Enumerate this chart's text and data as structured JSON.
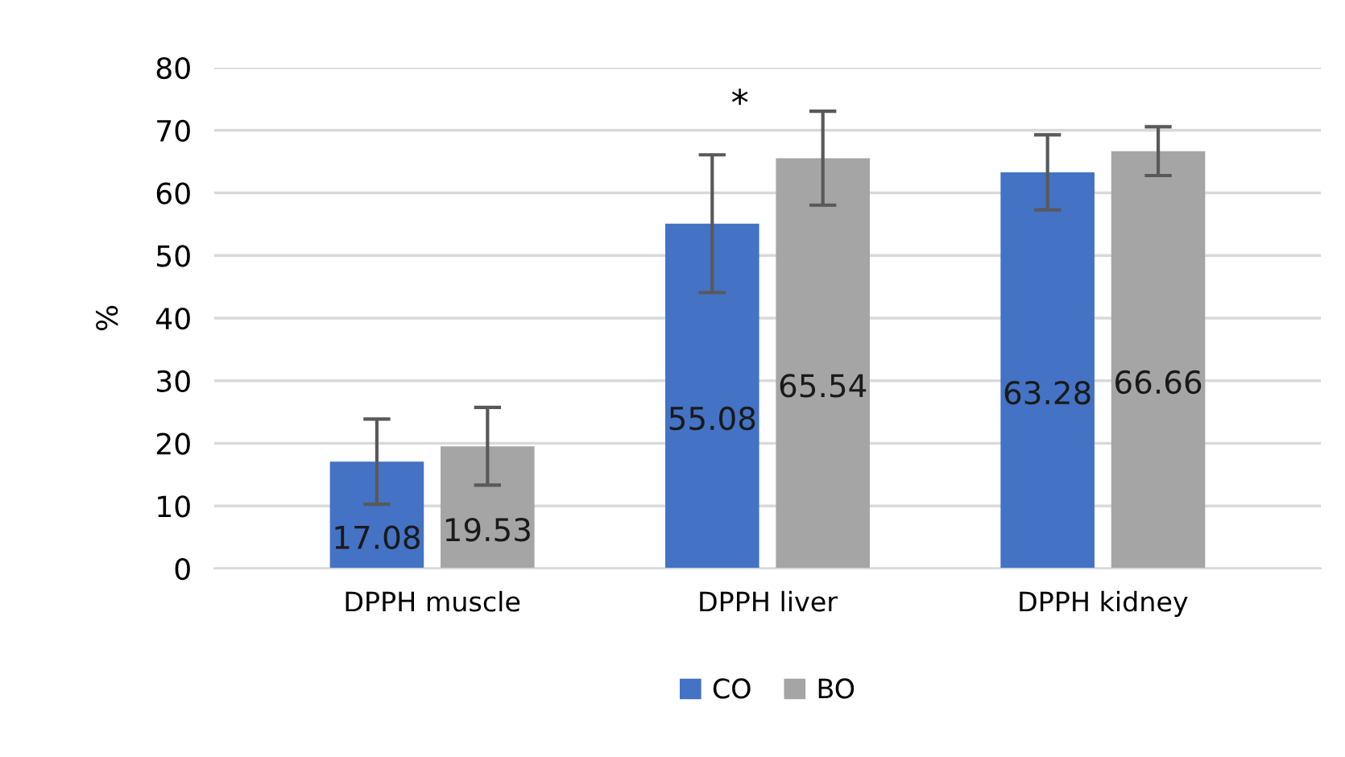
{
  "chart_data": {
    "type": "bar",
    "ylabel": "%",
    "categories": [
      "DPPH muscle",
      "DPPH liver",
      "DPPH kidney"
    ],
    "series": [
      {
        "name": "CO",
        "color": "#4472c4",
        "values": [
          17.08,
          55.08,
          63.28
        ],
        "errors": [
          6.8,
          11,
          6
        ]
      },
      {
        "name": "BO",
        "color": "#a5a5a5",
        "values": [
          19.53,
          65.54,
          66.66
        ],
        "errors": [
          6.2,
          7.5,
          3.9
        ]
      }
    ],
    "ylim": [
      0,
      80
    ],
    "yticks": [
      0,
      10,
      20,
      30,
      40,
      50,
      60,
      70,
      80
    ],
    "grid": "y",
    "legend": "bottom",
    "data_labels": true,
    "annotations": [
      "*"
    ]
  }
}
